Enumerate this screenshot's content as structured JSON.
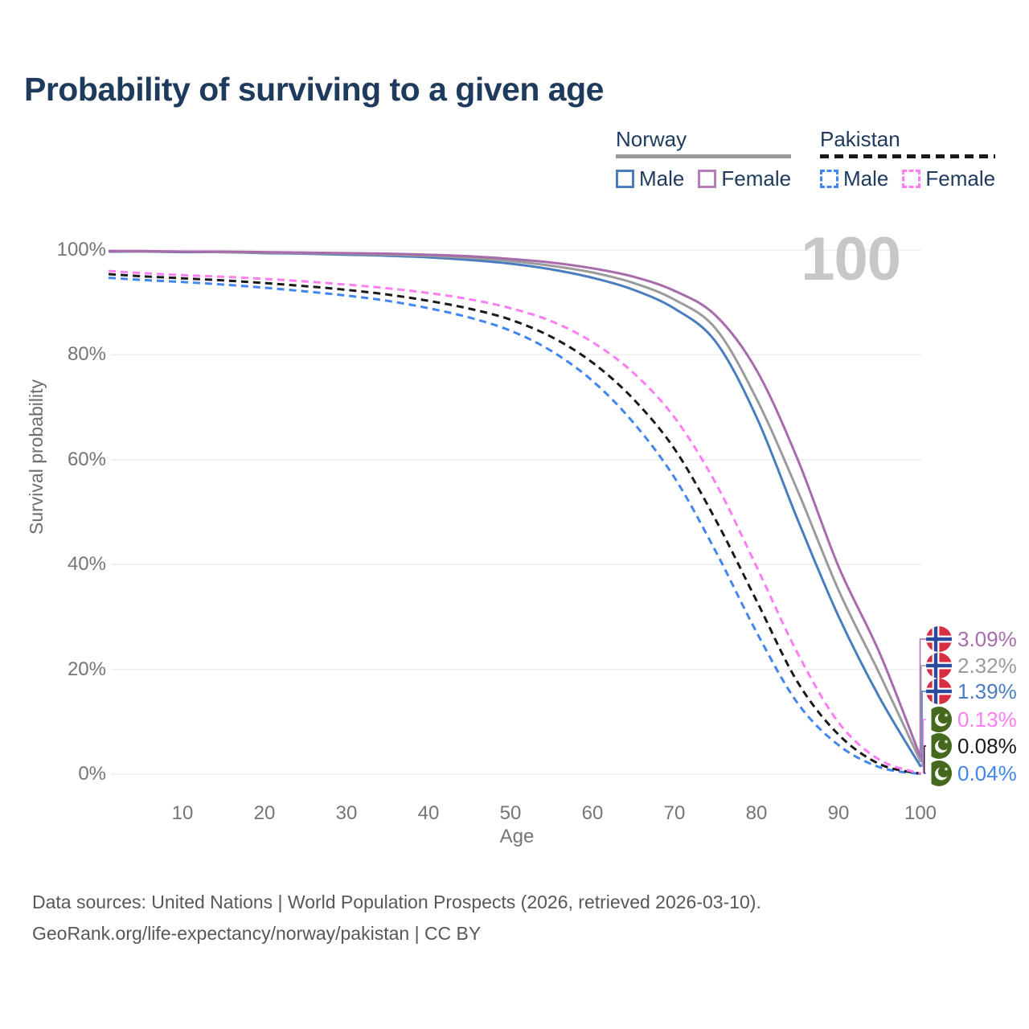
{
  "title": "Probability of surviving to a given age",
  "watermark": "100",
  "legend": {
    "groups": [
      {
        "label": "Norway",
        "line_style": "solid",
        "line_color": "#9b9b9b",
        "items": [
          {
            "label": "Male",
            "color": "#4a7dbf",
            "box_style": "solid"
          },
          {
            "label": "Female",
            "color": "#b77cba",
            "box_style": "solid"
          }
        ]
      },
      {
        "label": "Pakistan",
        "line_style": "dashed",
        "line_color": "#1a1a1a",
        "items": [
          {
            "label": "Male",
            "color": "#4186f0",
            "box_style": "dashed"
          },
          {
            "label": "Female",
            "color": "#fe7df2",
            "box_style": "dashed"
          }
        ]
      }
    ]
  },
  "chart_data": {
    "type": "line",
    "title": "Probability of surviving to a given age",
    "xlabel": "Age",
    "ylabel": "Survival probability",
    "xlim": [
      1,
      100
    ],
    "ylim": [
      0,
      100
    ],
    "grid": "horizontal",
    "legend_position": "top-right",
    "xticks": [
      10,
      20,
      30,
      40,
      50,
      60,
      70,
      80,
      90,
      100
    ],
    "xtick_labels": [
      "10",
      "20",
      "30",
      "40",
      "50",
      "60",
      "70",
      "80",
      "90",
      "100"
    ],
    "yticks": [
      100,
      80,
      60,
      40,
      20,
      0
    ],
    "ytick_labels": [
      "100%",
      "80%",
      "60%",
      "40%",
      "20%",
      "0%"
    ],
    "x": [
      1,
      5,
      10,
      15,
      20,
      25,
      30,
      35,
      40,
      45,
      50,
      55,
      60,
      65,
      70,
      75,
      80,
      85,
      90,
      95,
      100
    ],
    "series": [
      {
        "name": "Pakistan Male",
        "country": "Pakistan",
        "sex": "Male",
        "color": "#4186f0",
        "dash": "dashed",
        "end_label": "0.04%",
        "values": [
          94.7,
          94.3,
          93.9,
          93.4,
          92.8,
          92.1,
          91.3,
          90.3,
          88.9,
          87.1,
          84.6,
          80.7,
          75.0,
          67.0,
          56.5,
          42.5,
          27.0,
          13.5,
          5.5,
          1.3,
          0.04
        ]
      },
      {
        "name": "Pakistan Both sexes",
        "country": "Pakistan",
        "sex": "Both",
        "color": "#1a1a1a",
        "dash": "dashed",
        "end_label": "0.08%",
        "values": [
          95.4,
          95.0,
          94.6,
          94.2,
          93.7,
          93.1,
          92.4,
          91.5,
          90.3,
          88.8,
          86.7,
          83.4,
          78.5,
          71.5,
          62.0,
          48.5,
          33.0,
          17.5,
          7.5,
          1.9,
          0.08
        ]
      },
      {
        "name": "Pakistan Female",
        "country": "Pakistan",
        "sex": "Female",
        "color": "#fe7df2",
        "dash": "dashed",
        "end_label": "0.13%",
        "values": [
          96.0,
          95.6,
          95.2,
          94.9,
          94.5,
          94.0,
          93.4,
          92.7,
          91.8,
          90.6,
          88.9,
          86.4,
          82.4,
          76.5,
          68.0,
          55.5,
          39.5,
          23.0,
          9.8,
          2.7,
          0.13
        ]
      },
      {
        "name": "Norway Male",
        "country": "Norway",
        "sex": "Male",
        "color": "#4a7dbf",
        "dash": "solid",
        "end_label": "1.39%",
        "values": [
          99.7,
          99.7,
          99.6,
          99.6,
          99.4,
          99.3,
          99.1,
          98.9,
          98.6,
          98.1,
          97.4,
          96.3,
          94.7,
          92.4,
          88.8,
          82.5,
          68.0,
          48.5,
          30.0,
          14.5,
          1.39
        ]
      },
      {
        "name": "Norway Both sexes",
        "country": "Norway",
        "sex": "Both",
        "color": "#9b9b9b",
        "dash": "solid",
        "end_label": "2.32%",
        "values": [
          99.8,
          99.7,
          99.7,
          99.6,
          99.5,
          99.4,
          99.3,
          99.1,
          98.9,
          98.5,
          97.9,
          97.0,
          95.7,
          93.7,
          90.5,
          85.0,
          71.5,
          54.0,
          35.0,
          19.0,
          2.32
        ]
      },
      {
        "name": "Norway Female",
        "country": "Norway",
        "sex": "Female",
        "color": "#a86bab",
        "dash": "solid",
        "end_label": "3.09%",
        "values": [
          99.8,
          99.8,
          99.7,
          99.7,
          99.6,
          99.5,
          99.4,
          99.3,
          99.1,
          98.8,
          98.3,
          97.6,
          96.5,
          94.9,
          92.2,
          87.5,
          77.0,
          60.0,
          39.5,
          23.0,
          3.09
        ]
      }
    ]
  },
  "right_labels": [
    {
      "flag": "norway",
      "text": "3.09%",
      "value": 3.09,
      "color": "#a86bab"
    },
    {
      "flag": "norway",
      "text": "2.32%",
      "value": 2.32,
      "color": "#9b9b9b"
    },
    {
      "flag": "norway",
      "text": "1.39%",
      "value": 1.39,
      "color": "#4a7dbf"
    },
    {
      "flag": "pakistan",
      "text": "0.13%",
      "value": 0.13,
      "color": "#fe7df2"
    },
    {
      "flag": "pakistan",
      "text": "0.08%",
      "value": 0.08,
      "color": "#1a1a1a"
    },
    {
      "flag": "pakistan",
      "text": "0.04%",
      "value": 0.04,
      "color": "#4186f0"
    }
  ],
  "footer": {
    "line1": "Data sources: United Nations | World Population Prospects (2026, retrieved 2026-03-10).",
    "line2": "GeoRank.org/life-expectancy/norway/pakistan | CC BY"
  }
}
